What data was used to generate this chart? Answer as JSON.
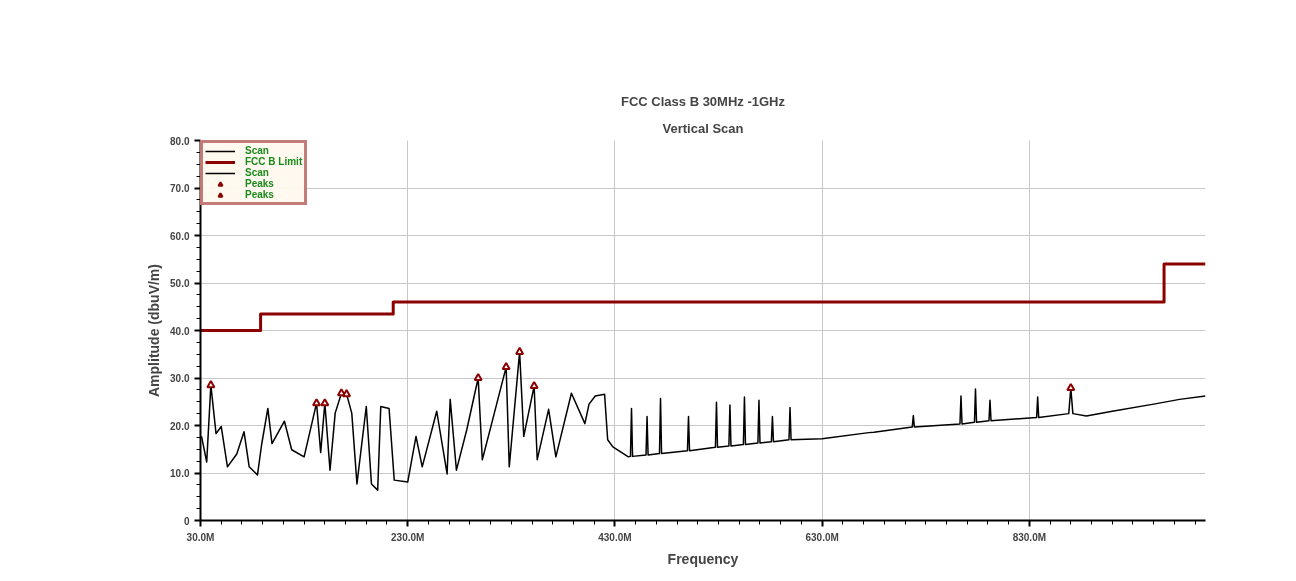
{
  "chart_data": {
    "type": "line",
    "title": "FCC Class B 30MHz -1GHz",
    "subtitle": "Vertical Scan",
    "xlabel": "Frequency",
    "ylabel": "Amplitude (dbuV/m)",
    "xlim": [
      30,
      1000
    ],
    "ylim": [
      0,
      80
    ],
    "xticks": [
      {
        "value": 30,
        "label": "30.0M"
      },
      {
        "value": 230,
        "label": "230.0M"
      },
      {
        "value": 430,
        "label": "430.0M"
      },
      {
        "value": 630,
        "label": "630.0M"
      },
      {
        "value": 830,
        "label": "830.0M"
      }
    ],
    "yticks": [
      0,
      {
        "value": 10,
        "label": "10.0"
      },
      {
        "value": 20,
        "label": "20.0"
      },
      {
        "value": 30,
        "label": "30.0"
      },
      {
        "value": 40,
        "label": "40.0"
      },
      {
        "value": 50,
        "label": "50.0"
      },
      {
        "value": 60,
        "label": "60.0"
      },
      {
        "value": 70,
        "label": "70.0"
      },
      {
        "value": 80,
        "label": "80.0"
      }
    ],
    "grid": true,
    "legend": "top left",
    "series": [
      {
        "name": "Scan",
        "color": "#000000",
        "x": [
          31,
          36,
          40,
          45,
          50,
          56,
          65,
          72,
          77,
          85,
          89,
          95,
          99,
          111,
          118,
          130,
          142,
          146,
          150,
          155,
          160,
          166,
          171,
          176,
          181,
          190,
          195,
          201,
          204,
          212,
          217,
          230,
          238,
          244,
          258,
          268,
          271,
          277,
          287,
          298,
          302,
          311,
          325,
          328,
          338,
          342,
          352,
          355,
          366,
          373,
          388,
          401,
          405,
          411,
          420,
          423,
          428,
          443,
          445,
          446,
          447,
          460,
          461,
          462,
          473,
          474,
          475,
          500,
          501,
          502,
          527,
          528,
          529,
          540,
          541,
          542,
          554,
          555,
          556,
          568,
          569,
          570,
          581,
          582,
          583,
          598,
          599,
          600,
          630,
          675,
          680,
          717,
          718,
          719,
          763,
          764,
          765,
          777,
          778,
          779,
          791,
          792,
          793,
          837,
          838,
          839,
          868,
          870,
          872,
          885,
          910,
          950,
          975,
          1000
        ],
        "values": [
          17.7,
          12.3,
          28.5,
          18.3,
          19.8,
          11.3,
          14,
          18.7,
          11.3,
          9.6,
          16,
          23.6,
          16.2,
          20.9,
          14.9,
          13.4,
          24.7,
          14.3,
          24.7,
          10.6,
          22.6,
          26.8,
          26.6,
          22.6,
          7.7,
          24,
          7.7,
          6.4,
          24,
          23.6,
          8.5,
          8.1,
          17.7,
          11.3,
          23,
          9.8,
          25.5,
          10.6,
          19.1,
          30,
          12.8,
          20.4,
          32.3,
          11.3,
          35.5,
          17.7,
          28.3,
          12.8,
          23.4,
          13.4,
          26.8,
          20.4,
          24.5,
          26.2,
          26.6,
          17,
          15.5,
          13.4,
          13.5,
          23.6,
          13.5,
          13.8,
          21.9,
          13.8,
          14.1,
          25.7,
          14.1,
          14.7,
          21.9,
          14.7,
          15.4,
          24.9,
          15.4,
          15.7,
          24.3,
          15.7,
          16,
          26,
          16,
          16.3,
          25.3,
          16.3,
          16.6,
          21.9,
          16.6,
          17,
          23.8,
          17,
          17.2,
          18.5,
          18.6,
          19.7,
          22.1,
          19.7,
          20.3,
          26.2,
          20.3,
          20.7,
          27.7,
          20.7,
          21,
          25.3,
          21,
          21.7,
          26,
          21.7,
          22.5,
          27.9,
          22.5,
          22,
          23,
          24.5,
          25.5,
          26.2
        ]
      },
      {
        "name": "FCC B Limit",
        "type": "step",
        "color": "#8b0000",
        "x": [
          30,
          88,
          216,
          960,
          1000
        ],
        "values": [
          40,
          43.5,
          46,
          54,
          54
        ]
      },
      {
        "name": "Scan",
        "type": "line",
        "color": "#000000"
      },
      {
        "name": "Peaks",
        "type": "scatter",
        "marker": "triangle",
        "color": "#8b0000",
        "x": [
          40,
          142,
          150,
          166,
          171,
          298,
          325,
          338,
          352,
          870
        ],
        "values": [
          28.5,
          24.7,
          24.7,
          26.8,
          26.6,
          30,
          32.3,
          35.5,
          28.3,
          27.9
        ]
      },
      {
        "name": "Peaks",
        "type": "scatter",
        "marker": "triangle",
        "color": "#8b0000"
      }
    ]
  }
}
